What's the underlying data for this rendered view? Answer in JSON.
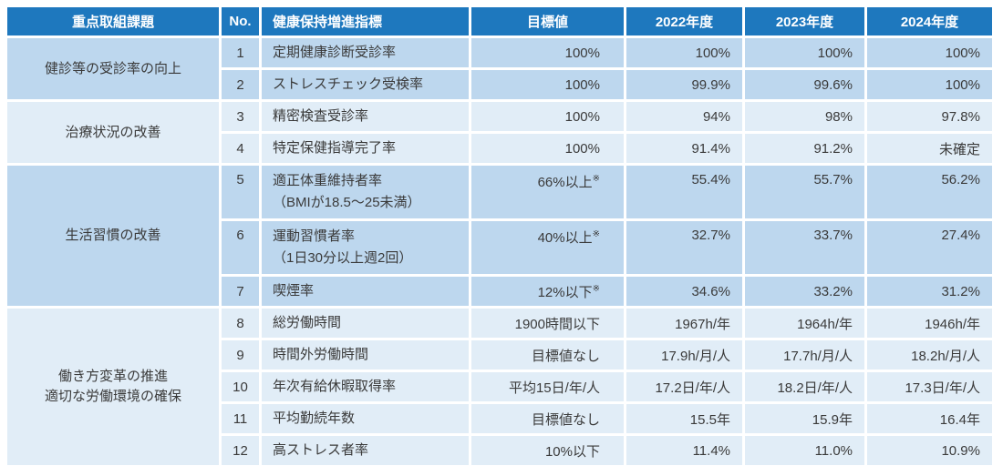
{
  "colors": {
    "header_bg": "#1e78be",
    "header_text": "#ffffff",
    "group_a_bg": "#bdd7ee",
    "group_b_bg": "#e1edf7",
    "text": "#3a3a3a",
    "background": "#ffffff"
  },
  "chart_data": {
    "type": "table",
    "title": "",
    "columns": [
      "重点取組課題",
      "No.",
      "健康保持増進指標",
      "目標値",
      "2022年度",
      "2023年度",
      "2024年度"
    ],
    "groups": [
      {
        "category_lines": [
          "健診等の受診率の向上"
        ],
        "rows": [
          {
            "no": "1",
            "indicator_lines": [
              "定期健康診断受診率"
            ],
            "target": "100%",
            "target_note": "",
            "values": [
              "100%",
              "100%",
              "100%"
            ]
          },
          {
            "no": "2",
            "indicator_lines": [
              "ストレスチェック受検率"
            ],
            "target": "100%",
            "target_note": "",
            "values": [
              "99.9%",
              "99.6%",
              "100%"
            ]
          }
        ]
      },
      {
        "category_lines": [
          "治療状況の改善"
        ],
        "rows": [
          {
            "no": "3",
            "indicator_lines": [
              "精密検査受診率"
            ],
            "target": "100%",
            "target_note": "",
            "values": [
              "94%",
              "98%",
              "97.8%"
            ]
          },
          {
            "no": "4",
            "indicator_lines": [
              "特定保健指導完了率"
            ],
            "target": "100%",
            "target_note": "",
            "values": [
              "91.4%",
              "91.2%",
              "未確定"
            ]
          }
        ]
      },
      {
        "category_lines": [
          "生活習慣の改善"
        ],
        "rows": [
          {
            "no": "5",
            "indicator_lines": [
              "適正体重維持者率",
              "（BMIが18.5～25未満）"
            ],
            "target": "66%以上",
            "target_note": "※",
            "values": [
              "55.4%",
              "55.7%",
              "56.2%"
            ]
          },
          {
            "no": "6",
            "indicator_lines": [
              "運動習慣者率",
              "（1日30分以上週2回）"
            ],
            "target": "40%以上",
            "target_note": "※",
            "values": [
              "32.7%",
              "33.7%",
              "27.4%"
            ]
          },
          {
            "no": "7",
            "indicator_lines": [
              "喫煙率"
            ],
            "target": "12%以下",
            "target_note": "※",
            "values": [
              "34.6%",
              "33.2%",
              "31.2%"
            ]
          }
        ]
      },
      {
        "category_lines": [
          "働き方変革の推進",
          "適切な労働環境の確保"
        ],
        "rows": [
          {
            "no": "8",
            "indicator_lines": [
              "総労働時間"
            ],
            "target": "1900時間以下",
            "target_note": "",
            "values": [
              "1967h/年",
              "1964h/年",
              "1946h/年"
            ]
          },
          {
            "no": "9",
            "indicator_lines": [
              "時間外労働時間"
            ],
            "target": "目標値なし",
            "target_note": "",
            "values": [
              "17.9h/月/人",
              "17.7h/月/人",
              "18.2h/月/人"
            ]
          },
          {
            "no": "10",
            "indicator_lines": [
              "年次有給休暇取得率"
            ],
            "target": "平均15日/年/人",
            "target_note": "",
            "values": [
              "17.2日/年/人",
              "18.2日/年/人",
              "17.3日/年/人"
            ]
          },
          {
            "no": "11",
            "indicator_lines": [
              "平均勤続年数"
            ],
            "target": "目標値なし",
            "target_note": "",
            "values": [
              "15.5年",
              "15.9年",
              "16.4年"
            ]
          },
          {
            "no": "12",
            "indicator_lines": [
              "高ストレス者率"
            ],
            "target": "10%以下",
            "target_note": "",
            "values": [
              "11.4%",
              "11.0%",
              "10.9%"
            ]
          }
        ]
      }
    ]
  }
}
